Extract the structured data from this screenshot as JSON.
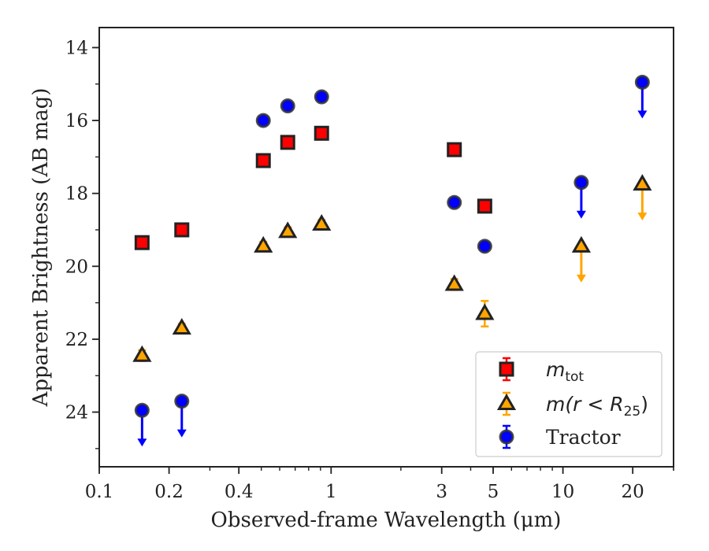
{
  "chart_data": {
    "type": "scatter",
    "xlabel": "Observed-frame Wavelength (μm)",
    "ylabel": "Apparent Brightness (AB mag)",
    "xscale": "log",
    "xlim": [
      0.1,
      30
    ],
    "ylim": [
      25.5,
      13.45
    ],
    "y_inverted": true,
    "x_ticks": [
      0.1,
      0.2,
      0.4,
      1,
      3,
      5,
      10,
      20
    ],
    "x_tick_labels": [
      "0.1",
      "0.2",
      "0.4",
      "1",
      "3",
      "5",
      "10",
      "20"
    ],
    "y_ticks": [
      14,
      16,
      18,
      20,
      22,
      24
    ],
    "y_tick_labels": [
      "14",
      "16",
      "18",
      "20",
      "22",
      "24"
    ],
    "grid": false,
    "legend_position": "lower-right",
    "series": [
      {
        "name": "m_tot",
        "legend_label": {
          "main": "m",
          "sub": "tot"
        },
        "marker": "square",
        "color": "#ff0000",
        "edge_color": "#222222",
        "error_color": "#ff0000",
        "points": [
          {
            "x": 0.153,
            "y": 19.35,
            "err": 0.12,
            "upper_limit": false
          },
          {
            "x": 0.227,
            "y": 19.0,
            "err": 0.12,
            "upper_limit": false
          },
          {
            "x": 0.51,
            "y": 17.1,
            "err": 0.12,
            "upper_limit": false
          },
          {
            "x": 0.65,
            "y": 16.6,
            "err": 0.12,
            "upper_limit": false
          },
          {
            "x": 0.91,
            "y": 16.35,
            "err": 0.12,
            "upper_limit": false
          },
          {
            "x": 3.4,
            "y": 16.8,
            "err": 0.12,
            "upper_limit": false
          },
          {
            "x": 4.6,
            "y": 18.35,
            "err": 0.12,
            "upper_limit": false
          }
        ]
      },
      {
        "name": "m(r < R25)",
        "legend_label": {
          "main": "m(r < R",
          "sub": "25",
          "tail": ")"
        },
        "marker": "triangle",
        "color": "#ffa500",
        "edge_color": "#222222",
        "error_color": "#ffa500",
        "points": [
          {
            "x": 0.153,
            "y": 22.45,
            "err": 0.15,
            "upper_limit": false
          },
          {
            "x": 0.227,
            "y": 21.7,
            "err": 0.12,
            "upper_limit": false
          },
          {
            "x": 0.51,
            "y": 19.45,
            "err": 0.12,
            "upper_limit": false
          },
          {
            "x": 0.65,
            "y": 19.05,
            "err": 0.12,
            "upper_limit": false
          },
          {
            "x": 0.91,
            "y": 18.85,
            "err": 0.12,
            "upper_limit": false
          },
          {
            "x": 3.4,
            "y": 20.5,
            "err": 0.15,
            "upper_limit": false
          },
          {
            "x": 4.6,
            "y": 21.3,
            "err": 0.35,
            "upper_limit": false
          },
          {
            "x": 12.0,
            "y": 19.45,
            "err": 0,
            "upper_limit": true
          },
          {
            "x": 22.0,
            "y": 17.75,
            "err": 0,
            "upper_limit": true
          }
        ]
      },
      {
        "name": "Tractor",
        "legend_label": {
          "main": "Tractor"
        },
        "marker": "circle",
        "color": "#0000ff",
        "edge_color": "#333333",
        "error_color": "#0000ff",
        "points": [
          {
            "x": 0.153,
            "y": 23.95,
            "err": 0,
            "upper_limit": true
          },
          {
            "x": 0.227,
            "y": 23.7,
            "err": 0,
            "upper_limit": true
          },
          {
            "x": 0.51,
            "y": 16.0,
            "err": 0.1,
            "upper_limit": false
          },
          {
            "x": 0.65,
            "y": 15.6,
            "err": 0.1,
            "upper_limit": false
          },
          {
            "x": 0.91,
            "y": 15.35,
            "err": 0.1,
            "upper_limit": false
          },
          {
            "x": 3.4,
            "y": 18.25,
            "err": 0.1,
            "upper_limit": false
          },
          {
            "x": 4.6,
            "y": 19.45,
            "err": 0.1,
            "upper_limit": false
          },
          {
            "x": 12.0,
            "y": 17.7,
            "err": 0,
            "upper_limit": true
          },
          {
            "x": 22.0,
            "y": 14.95,
            "err": 0,
            "upper_limit": true
          }
        ]
      }
    ]
  }
}
